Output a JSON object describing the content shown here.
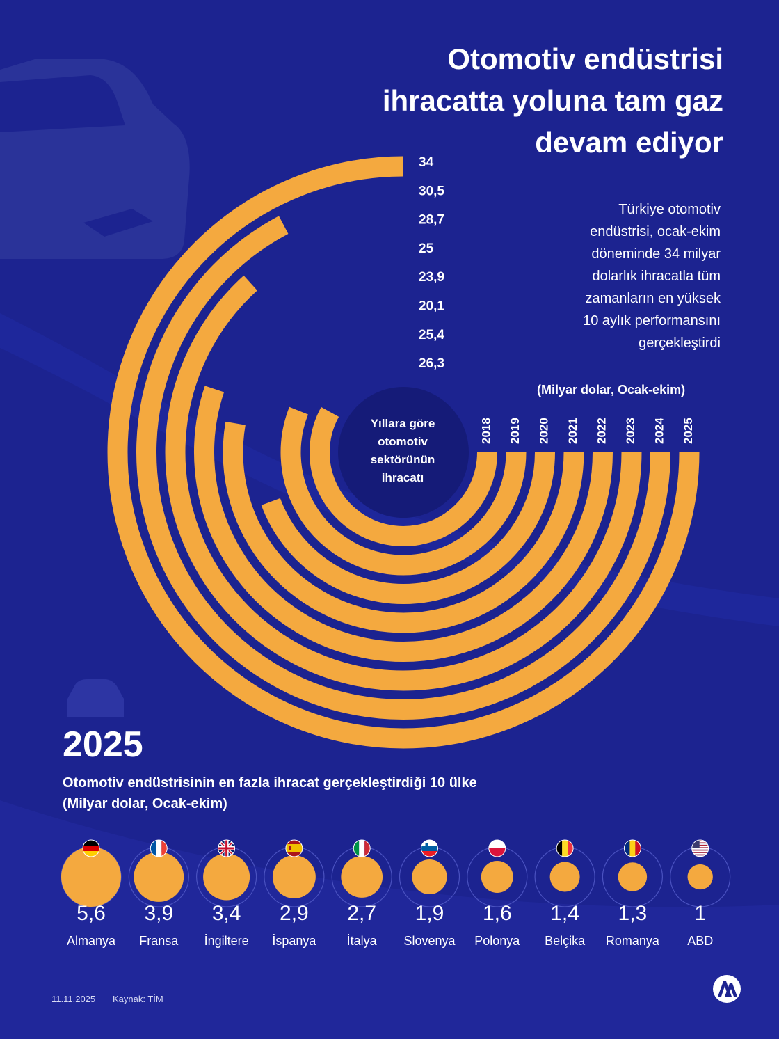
{
  "title_lines": [
    "Otomotiv endüstrisi",
    "ihracatta yoluna tam gaz",
    "devam ediyor"
  ],
  "intro_lines": [
    "Türkiye otomotiv",
    "endüstrisi, ocak-ekim",
    "döneminde 34 milyar",
    "dolarlık ihracatla tüm",
    "zamanların en yüksek",
    "10 aylık performansını",
    "gerçekleştirdi"
  ],
  "footer": {
    "date": "11.11.2025",
    "source": "Kaynak: TİM"
  },
  "colors": {
    "background": "#1c2390",
    "accent": "#f4a93f",
    "text": "#ffffff"
  },
  "icons": [
    "car-silhouette-icon",
    "car-icon",
    "aa-logo-icon",
    "flag-icons"
  ],
  "chart_data": [
    {
      "type": "radial-bar",
      "title": "Yıllara göre otomotiv sektörünün ihracatı",
      "unit": "(Milyar dolar, Ocak-ekim)",
      "categories": [
        "2018",
        "2019",
        "2020",
        "2021",
        "2022",
        "2023",
        "2024",
        "2025"
      ],
      "values": [
        26.3,
        25.4,
        20.1,
        23.9,
        25,
        28.7,
        30.5,
        34
      ],
      "value_labels": [
        "34",
        "30,5",
        "28,7",
        "25",
        "23,9",
        "20,1",
        "25,4",
        "26,3"
      ],
      "max": 34
    },
    {
      "type": "bubble",
      "year": "2025",
      "title": "Otomotiv endüstrisinin en fazla ihracat gerçekleştirdiği 10 ülke",
      "unit": "(Milyar dolar, Ocak-ekim)",
      "categories": [
        "Almanya",
        "Fransa",
        "İngiltere",
        "İspanya",
        "İtalya",
        "Slovenya",
        "Polonya",
        "Belçika",
        "Romanya",
        "ABD"
      ],
      "values": [
        5.6,
        3.9,
        3.4,
        2.9,
        2.7,
        1.9,
        1.6,
        1.4,
        1.3,
        1
      ],
      "value_labels": [
        "5,6",
        "3,9",
        "3,4",
        "2,9",
        "2,7",
        "1,9",
        "1,6",
        "1,4",
        "1,3",
        "1"
      ],
      "flags": [
        "de",
        "fr",
        "gb",
        "es",
        "it",
        "si",
        "pl",
        "be",
        "ro",
        "us"
      ]
    }
  ]
}
